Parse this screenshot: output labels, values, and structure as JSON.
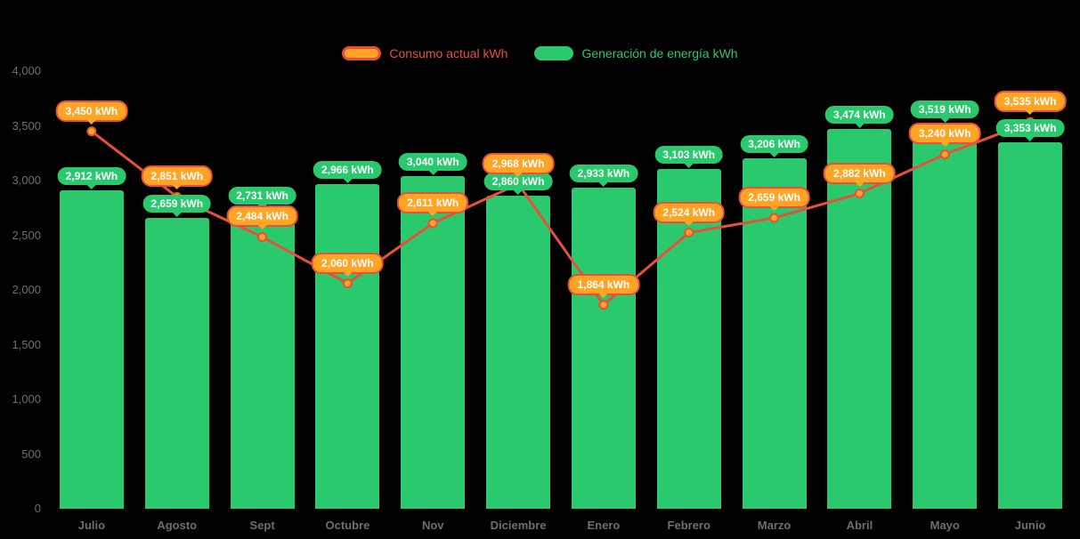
{
  "colors": {
    "background": "#000000",
    "bar_green": "#2bc96e",
    "line_red": "#e8503a",
    "point_orange": "#ffa425",
    "axis_text": "#6e6e6e",
    "label_text": "#ffffff"
  },
  "legend": {
    "consumo_label": "Consumo actual kWh",
    "generacion_label": "Generación de energía kWh"
  },
  "chart_data": {
    "type": "bar+line",
    "title": "",
    "xlabel": "",
    "ylabel": "",
    "ylim": [
      0,
      4000
    ],
    "yticks": [
      0,
      500,
      1000,
      1500,
      2000,
      2500,
      3000,
      3500,
      4000
    ],
    "ytick_labels": [
      "0",
      "500",
      "1,000",
      "1,500",
      "2,000",
      "2,500",
      "3,000",
      "3,500",
      "4,000"
    ],
    "grid": false,
    "legend_position": "top-center",
    "categories": [
      "Julio",
      "Agosto",
      "Sept",
      "Octubre",
      "Nov",
      "Diciembre",
      "Enero",
      "Febrero",
      "Marzo",
      "Abril",
      "Mayo",
      "Junio"
    ],
    "series": [
      {
        "name": "Consumo actual kWh",
        "type": "line",
        "color": "#e8503a",
        "values": [
          3450,
          2851,
          2484,
          2060,
          2611,
          2968,
          1864,
          2524,
          2659,
          2882,
          3240,
          3535
        ],
        "labels": [
          "3,450 kWh",
          "2,851 kWh",
          "2,484 kWh",
          "2,060 kWh",
          "2,611 kWh",
          "2,968 kWh",
          "1,864 kWh",
          "2,524 kWh",
          "2,659 kWh",
          "2,882 kWh",
          "3,240 kWh",
          "3,535 kWh"
        ]
      },
      {
        "name": "Generación de energía kWh",
        "type": "bar",
        "color": "#2bc96e",
        "values": [
          2912,
          2659,
          2731,
          2966,
          3040,
          2860,
          2933,
          3103,
          3206,
          3474,
          3519,
          3353
        ],
        "labels": [
          "2,912 kWh",
          "2,659 kWh",
          "2,731 kWh",
          "2,966 kWh",
          "3,040 kWh",
          "2,860 kWh",
          "2,933 kWh",
          "3,103 kWh",
          "3,206 kWh",
          "3,474 kWh",
          "3,519 kWh",
          "3,353 kWh"
        ]
      }
    ]
  }
}
